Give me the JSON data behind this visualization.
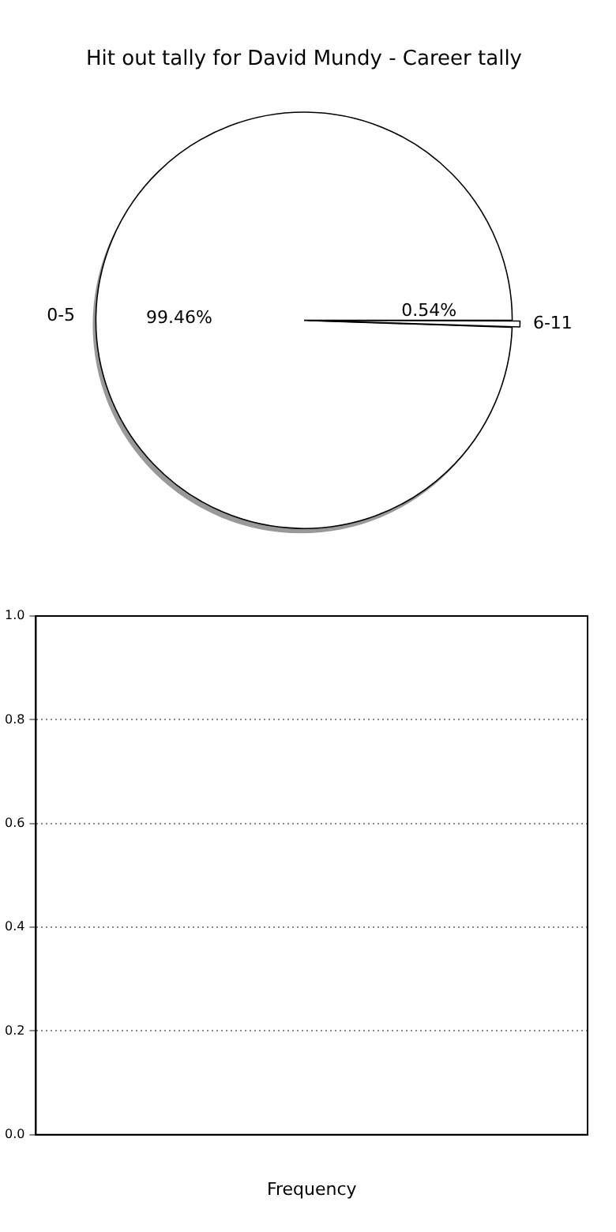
{
  "chart_data": [
    {
      "type": "pie",
      "title": "Hit out tally for David Mundy - Career tally",
      "categories": [
        "0-5",
        "6-11"
      ],
      "values": [
        99.46,
        0.54
      ],
      "colors": [
        "#ffffff",
        "#ffffff"
      ],
      "value_labels": [
        "99.46%",
        "0.54%"
      ]
    },
    {
      "type": "bar",
      "categories": [
        null
      ],
      "values": [
        null
      ],
      "xlabel": "Frequency",
      "ylim": [
        0,
        1
      ],
      "yticks": [
        {
          "value": 0,
          "label": "0.0"
        },
        {
          "value": 0.2,
          "label": "0.2"
        },
        {
          "value": 0.4,
          "label": "0.4"
        },
        {
          "value": 0.6,
          "label": "0.6"
        },
        {
          "value": 0.8,
          "label": "0.8"
        },
        {
          "value": 1,
          "label": "1.0"
        }
      ],
      "grid": "y"
    }
  ]
}
